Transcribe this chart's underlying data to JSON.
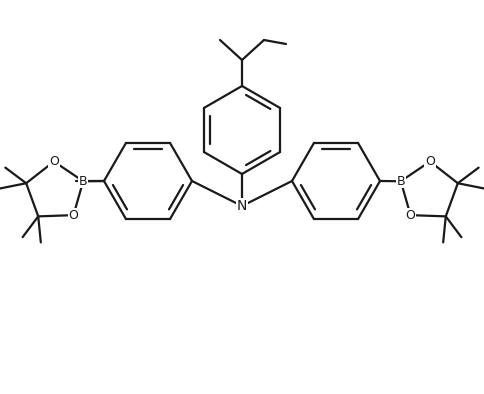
{
  "bg_color": "#ffffff",
  "line_color": "#1a1a1a",
  "line_width": 1.6,
  "fig_width": 4.84,
  "fig_height": 3.94,
  "dpi": 100,
  "xlim": [
    0,
    484
  ],
  "ylim": [
    0,
    394
  ],
  "N_label": "N",
  "B_label": "B",
  "O_label": "O",
  "font_size": 9
}
